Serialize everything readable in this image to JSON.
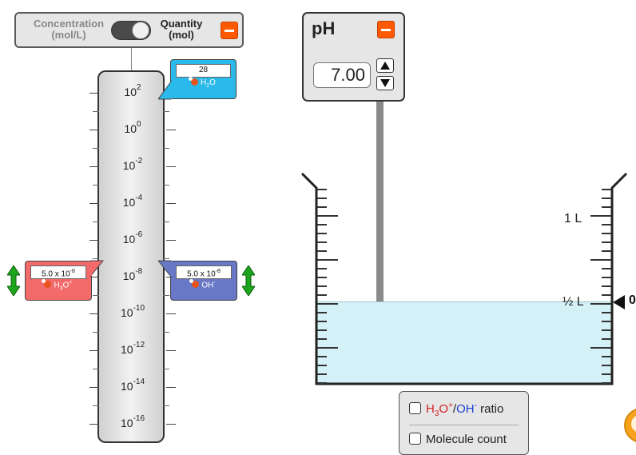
{
  "toggle": {
    "left_label_line1": "Concentration",
    "left_label_line2": "(mol/L)",
    "right_label_line1": "Quantity",
    "right_label_line2": "(mol)",
    "state": "quantity"
  },
  "graph": {
    "ticks": [
      {
        "base": "10",
        "exp": "2"
      },
      {
        "base": "10",
        "exp": "0"
      },
      {
        "base": "10",
        "exp": "-2"
      },
      {
        "base": "10",
        "exp": "-4"
      },
      {
        "base": "10",
        "exp": "-6"
      },
      {
        "base": "10",
        "exp": "-8"
      },
      {
        "base": "10",
        "exp": "-10"
      },
      {
        "base": "10",
        "exp": "-12"
      },
      {
        "base": "10",
        "exp": "-14"
      },
      {
        "base": "10",
        "exp": "-16"
      }
    ]
  },
  "water": {
    "value": "28",
    "species": "H",
    "sub": "2",
    "tail": "O",
    "color": "#29b9ea"
  },
  "h3o": {
    "value_mantissa": "5.0 x 10",
    "value_exp": "-8",
    "species": "H",
    "sub": "3",
    "tail": "O",
    "sup": "+",
    "color": "#f26a6a"
  },
  "oh": {
    "value_mantissa": "5.0 x 10",
    "value_exp": "-8",
    "species": "OH",
    "sup": "-",
    "color": "#6877c6"
  },
  "ph_meter": {
    "title": "pH",
    "value": "7.00"
  },
  "beaker": {
    "label_full": "1 L",
    "label_half": "½ L",
    "volume_value_partial": "0"
  },
  "options": {
    "ratio_h3o": "H",
    "ratio_h3o_sub": "3",
    "ratio_h3o_tail": "O",
    "ratio_h3o_sup": "+",
    "ratio_sep": "/",
    "ratio_oh": "OH",
    "ratio_oh_sup": "-",
    "ratio_word": "ratio",
    "molecule_count": "Molecule count"
  },
  "colors": {
    "accent_orange": "#ff5a00",
    "liquid": "#d4f1f7",
    "arrow_green": "#1ea51e"
  }
}
